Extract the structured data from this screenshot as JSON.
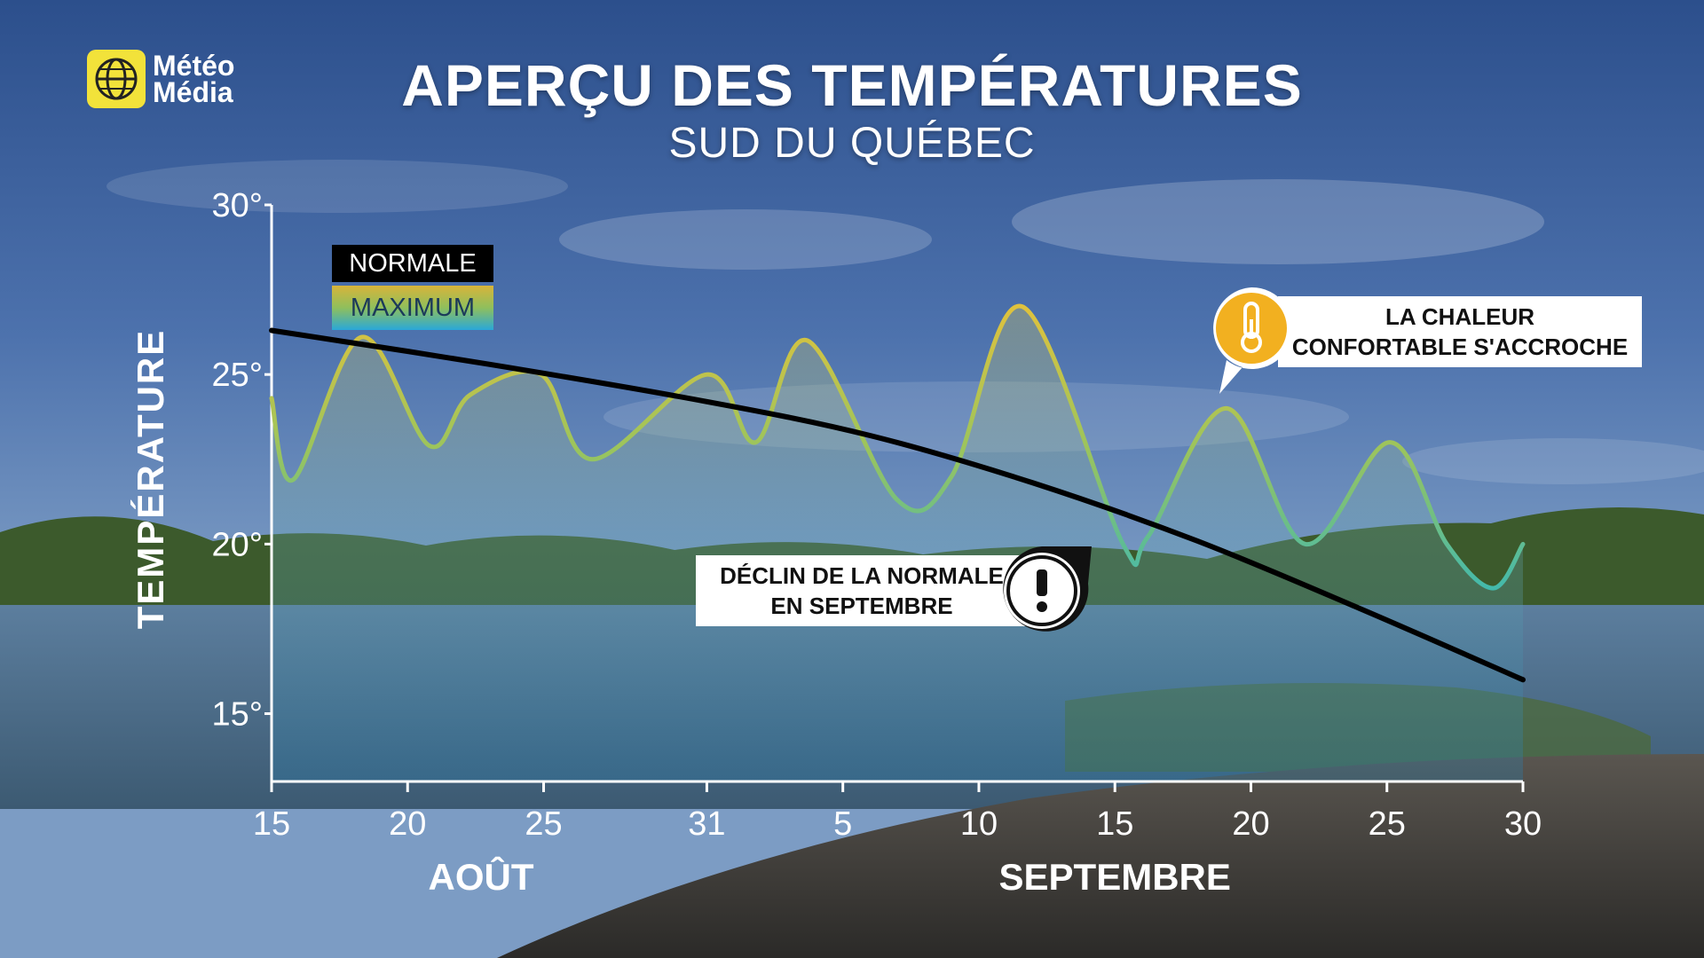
{
  "brand": {
    "line1": "Météo",
    "line2": "Média",
    "logo_color": "#f2e23a"
  },
  "title": "APERÇU DES TEMPÉRATURES",
  "subtitle": "SUD DU QUÉBEC",
  "legend": {
    "normal_label": "NORMALE",
    "max_label": "MAXIMUM"
  },
  "callouts": {
    "heat": {
      "line1": "LA CHALEUR",
      "line2": "CONFORTABLE S'ACCROCHE",
      "icon": "thermometer-icon",
      "color": "#f2b020"
    },
    "decline": {
      "line1": "DÉCLIN DE LA NORMALE",
      "line2": "EN SEPTEMBRE",
      "icon": "exclamation-icon"
    }
  },
  "chart_data": {
    "type": "line",
    "xlabel": "",
    "ylabel": "TEMPÉRATURE",
    "ylim": [
      13,
      30
    ],
    "y_ticks": [
      30,
      25,
      20,
      15
    ],
    "y_tick_labels": [
      "30°",
      "25°",
      "20°",
      "15°"
    ],
    "x_ticks": [
      {
        "day": 0,
        "label": "15"
      },
      {
        "day": 5,
        "label": "20"
      },
      {
        "day": 10,
        "label": "25"
      },
      {
        "day": 16,
        "label": "31"
      },
      {
        "day": 21,
        "label": "5"
      },
      {
        "day": 26,
        "label": "10"
      },
      {
        "day": 31,
        "label": "15"
      },
      {
        "day": 36,
        "label": "20"
      },
      {
        "day": 41,
        "label": "25"
      },
      {
        "day": 46,
        "label": "30"
      }
    ],
    "months": [
      {
        "day": 7.7,
        "label": "AOÛT"
      },
      {
        "day": 31,
        "label": "SEPTEMBRE"
      }
    ],
    "series": [
      {
        "name": "NORMALE",
        "color": "#000000",
        "x": [
          0,
          8,
          16,
          22,
          28,
          34,
          40,
          46
        ],
        "y": [
          26.3,
          25.3,
          24.2,
          23.2,
          21.8,
          20.1,
          18.1,
          16.0
        ]
      },
      {
        "name": "MAXIMUM",
        "x": [
          0,
          0.8,
          3.3,
          5.8,
          7.3,
          9.9,
          11.8,
          16.0,
          17.8,
          19.7,
          23.0,
          25.0,
          27.6,
          31.3,
          32.2,
          35.1,
          38.0,
          41.1,
          43.2,
          44.9,
          46
        ],
        "y": [
          24.3,
          21.9,
          26.1,
          22.9,
          24.4,
          25.0,
          22.5,
          25.0,
          23.0,
          26.0,
          21.3,
          22.0,
          27.0,
          20.0,
          20.2,
          24.0,
          20.0,
          23.0,
          20.0,
          18.7,
          20.0
        ]
      }
    ],
    "grid": false,
    "legend_position": "top-left"
  }
}
